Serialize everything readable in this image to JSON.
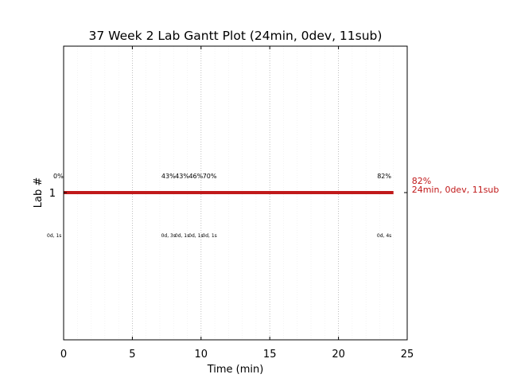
{
  "colors": {
    "bar": "#c0191a",
    "end_label": "#c0191a",
    "axes": "#000000",
    "major_grid": "#b0b0b0",
    "minor_grid": "#ececec"
  },
  "chart_data": {
    "type": "gantt",
    "title": "37 Week 2 Lab Gantt Plot (24min, 0dev, 11sub)",
    "xlabel": "Time (min)",
    "ylabel": "Lab #",
    "xlim": [
      0,
      25
    ],
    "x_ticks": [
      0,
      5,
      10,
      15,
      20,
      25
    ],
    "x_minor_step": 1,
    "grid": "vertical dotted",
    "rows": [
      {
        "lab": "1",
        "start": 0,
        "end": 24,
        "end_label_line1": "82%",
        "end_label_line2": "24min, 0dev, 11sub",
        "score_labels": [
          {
            "x": 0,
            "text": "0%"
          },
          {
            "x": 7.8,
            "text": "43%"
          },
          {
            "x": 8.8,
            "text": "43%"
          },
          {
            "x": 9.8,
            "text": "46%"
          },
          {
            "x": 10.8,
            "text": "70%"
          },
          {
            "x": 23.5,
            "text": "82%"
          }
        ],
        "submission_labels": [
          {
            "x": 0,
            "text": "0d, 1s"
          },
          {
            "x": 7.8,
            "text": "0d, 3s"
          },
          {
            "x": 8.8,
            "text": "0d, 1s"
          },
          {
            "x": 9.8,
            "text": "0d, 1s"
          },
          {
            "x": 10.8,
            "text": "0d, 1s"
          },
          {
            "x": 23.5,
            "text": "0d, 4s"
          }
        ]
      }
    ]
  }
}
